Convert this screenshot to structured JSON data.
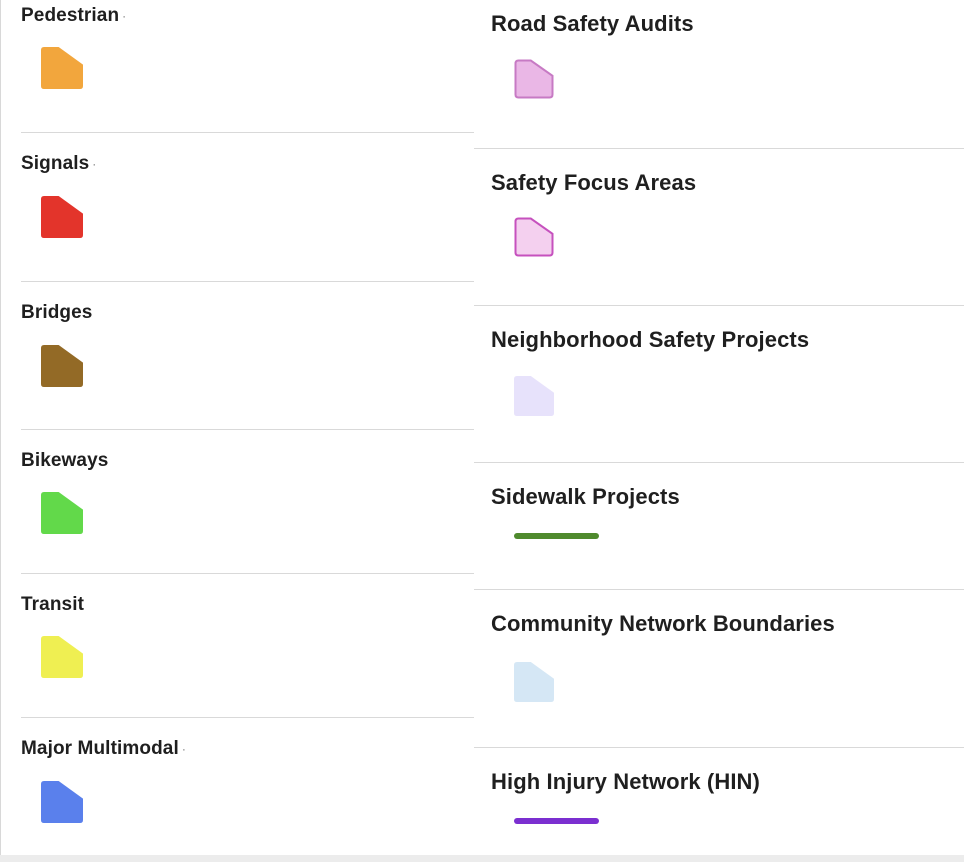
{
  "legend": {
    "left": [
      {
        "label": "Pedestrian",
        "color": "#f2a63d",
        "stroke": "#f2a63d",
        "type": "polygon"
      },
      {
        "label": "Signals",
        "color": "#e3342b",
        "stroke": "#e3342b",
        "type": "polygon"
      },
      {
        "label": "Bridges",
        "color": "#936a26",
        "stroke": "#936a26",
        "type": "polygon"
      },
      {
        "label": "Bikeways",
        "color": "#62d94a",
        "stroke": "#62d94a",
        "type": "polygon"
      },
      {
        "label": "Transit",
        "color": "#efef52",
        "stroke": "#efef52",
        "type": "polygon"
      },
      {
        "label": "Major Multimodal",
        "color": "#5a80ec",
        "stroke": "#5a80ec",
        "type": "polygon"
      }
    ],
    "right": [
      {
        "label": "Road Safety Audits",
        "color": "#eab7e6",
        "stroke": "#c77ac4",
        "type": "polygon"
      },
      {
        "label": "Safety Focus Areas",
        "color": "#f4d0ef",
        "stroke": "#c651be",
        "type": "polygon"
      },
      {
        "label": "Neighborhood Safety Projects",
        "color": "#e7e2fb",
        "stroke": "#e7e2fb",
        "type": "polygon"
      },
      {
        "label": "Sidewalk Projects",
        "color": "#4f8a2d",
        "type": "line"
      },
      {
        "label": "Community Network Boundaries",
        "color": "#d5e7f5",
        "stroke": "#d5e7f5",
        "type": "polygon"
      },
      {
        "label": "High Injury Network (HIN)",
        "color": "#7b2fd0",
        "type": "line"
      }
    ]
  }
}
